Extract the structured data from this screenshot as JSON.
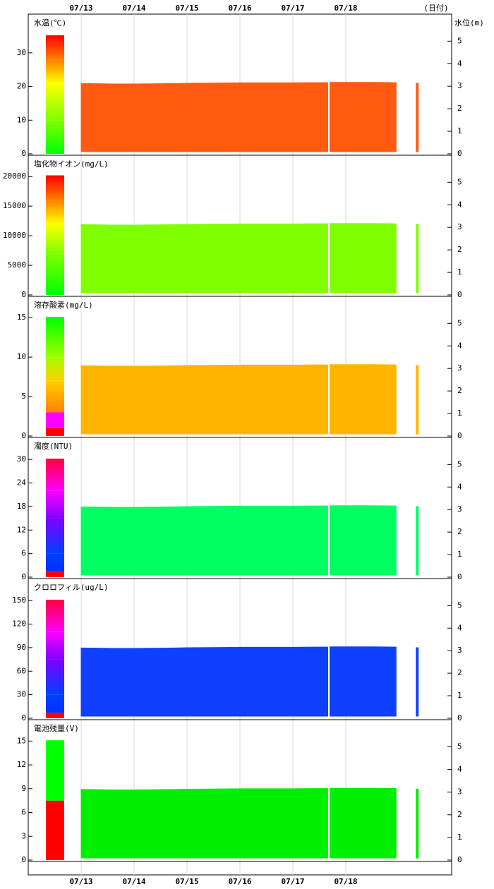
{
  "date_axis": {
    "label": "(日付)",
    "xlim": [
      12,
      20
    ],
    "xticks": [
      {
        "value": 13,
        "label": "07/13"
      },
      {
        "value": 14,
        "label": "07/14"
      },
      {
        "value": 15,
        "label": "07/15"
      },
      {
        "value": 16,
        "label": "07/16"
      },
      {
        "value": 17,
        "label": "07/17"
      },
      {
        "value": 18,
        "label": "07/18"
      }
    ]
  },
  "water_level": {
    "label": "水位(m)",
    "y2lim": [
      0,
      6.2
    ],
    "y2ticks": [
      0,
      1,
      2,
      3,
      4,
      5
    ],
    "x": [
      13.0,
      13.3,
      13.6,
      14.0,
      14.5,
      15.0,
      15.5,
      16.0,
      16.5,
      17.0,
      17.4,
      17.66,
      17.68,
      17.7,
      18.0,
      18.5,
      18.95,
      19.0,
      19.33,
      19.37
    ],
    "values": [
      3.12,
      3.11,
      3.1,
      3.1,
      3.11,
      3.13,
      3.14,
      3.15,
      3.15,
      3.15,
      3.16,
      3.16,
      null,
      3.17,
      3.17,
      3.17,
      3.16,
      null,
      3.13,
      3.13
    ]
  },
  "chart_data": [
    {
      "type": "area",
      "title": "水温(℃)",
      "ylim": [
        0,
        41.5
      ],
      "yticks": [
        0,
        10,
        20,
        30
      ],
      "color": "#ff5a10",
      "colorbar": [
        {
          "value": 0,
          "color": "#00ff00"
        },
        {
          "value": 10,
          "color": "#80ff00"
        },
        {
          "value": 21,
          "color": "#ffff00"
        },
        {
          "value": 28,
          "color": "#ff8000"
        },
        {
          "value": 35.2,
          "color": "#ff0000"
        }
      ]
    },
    {
      "type": "area",
      "title": "塩化物イオン(mg/L)",
      "ylim": [
        0,
        23600
      ],
      "yticks": [
        0,
        5000,
        10000,
        15000,
        20000
      ],
      "color": "#80ff00",
      "colorbar": [
        {
          "value": 0,
          "color": "#00ff00"
        },
        {
          "value": 7000,
          "color": "#80ff00"
        },
        {
          "value": 12000,
          "color": "#ffff00"
        },
        {
          "value": 16000,
          "color": "#ff8000"
        },
        {
          "value": 20200,
          "color": "#ff0000"
        }
      ]
    },
    {
      "type": "area",
      "title": "溶存酸素(mg/L)",
      "ylim": [
        0,
        17.7
      ],
      "yticks": [
        0,
        5,
        10,
        15
      ],
      "color": "#ffb400",
      "colorbar": [
        {
          "value": 0,
          "color": "#ff0000"
        },
        {
          "value": 1,
          "color": "#ff0000"
        },
        {
          "value": 1,
          "color": "#ff00ff"
        },
        {
          "value": 3,
          "color": "#ff00ff"
        },
        {
          "value": 3,
          "color": "#ff8000"
        },
        {
          "value": 7,
          "color": "#ffd000"
        },
        {
          "value": 10,
          "color": "#a0ff00"
        },
        {
          "value": 15.1,
          "color": "#00ff00"
        }
      ]
    },
    {
      "type": "area",
      "title": "濁度(NTU)",
      "ylim": [
        0,
        35.6
      ],
      "yticks": [
        0,
        6,
        12,
        18,
        24,
        30
      ],
      "color": "#00ff60",
      "colorbar": [
        {
          "value": 0,
          "color": "#ff0000"
        },
        {
          "value": 1.5,
          "color": "#ff0000"
        },
        {
          "value": 1.5,
          "color": "#0030ff"
        },
        {
          "value": 6,
          "color": "#0040ff"
        },
        {
          "value": 15,
          "color": "#8000ff"
        },
        {
          "value": 22,
          "color": "#ff00ff"
        },
        {
          "value": 30.2,
          "color": "#ff0040"
        }
      ]
    },
    {
      "type": "area",
      "title": "クロロフィル(ug/L)",
      "ylim": [
        0,
        178
      ],
      "yticks": [
        0,
        30,
        60,
        90,
        120,
        150
      ],
      "color": "#1040ff",
      "colorbar": [
        {
          "value": 0,
          "color": "#ff0000"
        },
        {
          "value": 7,
          "color": "#ff0000"
        },
        {
          "value": 7,
          "color": "#0030ff"
        },
        {
          "value": 30,
          "color": "#0040ff"
        },
        {
          "value": 75,
          "color": "#8000ff"
        },
        {
          "value": 110,
          "color": "#ff00ff"
        },
        {
          "value": 151,
          "color": "#ff0040"
        }
      ]
    },
    {
      "type": "area",
      "title": "電池残量(V)",
      "ylim": [
        0,
        17.7
      ],
      "yticks": [
        0,
        3,
        6,
        9,
        12,
        15
      ],
      "color": "#00ee00",
      "colorbar": [
        {
          "value": 0,
          "color": "#ff0000"
        },
        {
          "value": 7.5,
          "color": "#ff0000"
        },
        {
          "value": 7.5,
          "color": "#00ff00"
        },
        {
          "value": 15.1,
          "color": "#00ff00"
        }
      ]
    }
  ]
}
